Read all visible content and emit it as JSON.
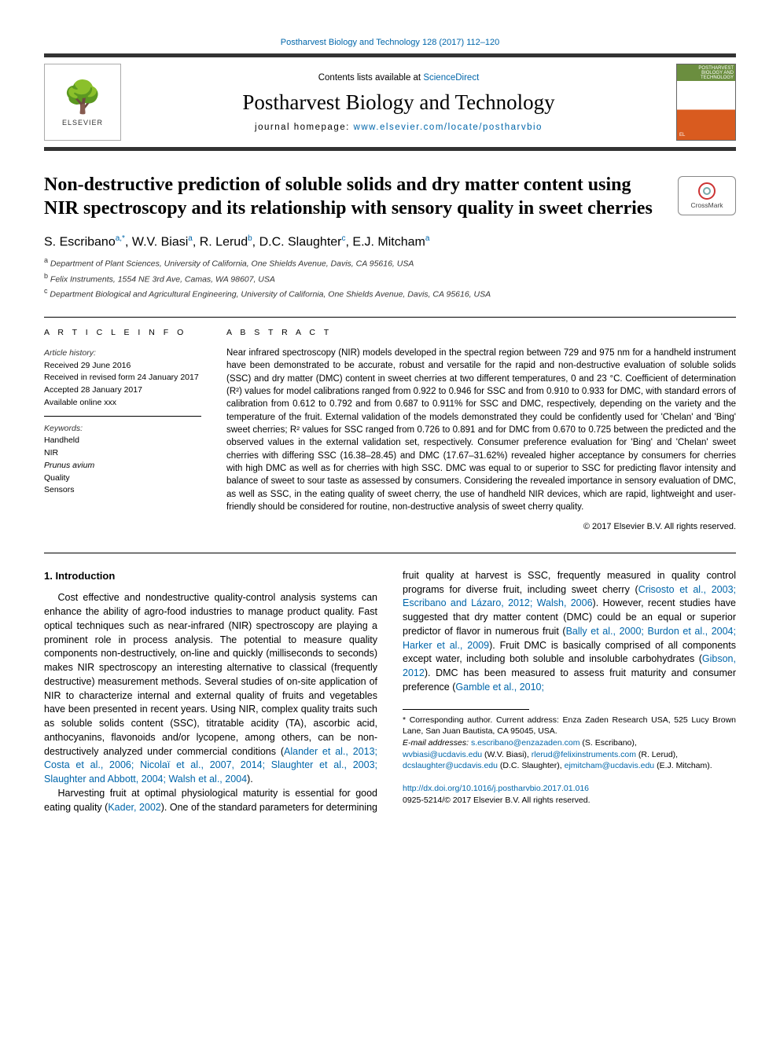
{
  "header": {
    "top_citation": "Postharvest Biology and Technology 128 (2017) 112–120",
    "contents_prefix": "Contents lists available at ",
    "contents_link": "ScienceDirect",
    "journal_title": "Postharvest Biology and Technology",
    "homepage_label": "journal homepage: ",
    "homepage_url": "www.elsevier.com/locate/postharvbio",
    "publisher_logo_name": "ELSEVIER",
    "cover_title": "POSTHARVEST BIOLOGY AND TECHNOLOGY"
  },
  "crossmark": "CrossMark",
  "article": {
    "title": "Non-destructive prediction of soluble solids and dry matter content using NIR spectroscopy and its relationship with sensory quality in sweet cherries",
    "authors_html": "S. Escribano<sup>a,*</sup>, W.V. Biasi<sup>a</sup>, R. Lerud<sup>b</sup>, D.C. Slaughter<sup>c</sup>, E.J. Mitcham<sup>a</sup>",
    "affiliations": [
      {
        "sup": "a",
        "text": "Department of Plant Sciences, University of California, One Shields Avenue, Davis, CA 95616, USA"
      },
      {
        "sup": "b",
        "text": "Felix Instruments, 1554 NE 3rd Ave, Camas, WA 98607, USA"
      },
      {
        "sup": "c",
        "text": "Department Biological and Agricultural Engineering, University of California, One Shields Avenue, Davis, CA 95616, USA"
      }
    ]
  },
  "info": {
    "heading": "A R T I C L E   I N F O",
    "history_label": "Article history:",
    "history": [
      "Received 29 June 2016",
      "Received in revised form 24 January 2017",
      "Accepted 28 January 2017",
      "Available online xxx"
    ],
    "keywords_label": "Keywords:",
    "keywords": [
      "Handheld",
      "NIR",
      "Prunus avium",
      "Quality",
      "Sensors"
    ]
  },
  "abstract": {
    "heading": "A B S T R A C T",
    "text": "Near infrared spectroscopy (NIR) models developed in the spectral region between 729 and 975 nm for a handheld instrument have been demonstrated to be accurate, robust and versatile for the rapid and non-destructive evaluation of soluble solids (SSC) and dry matter (DMC) content in sweet cherries at two different temperatures, 0 and 23 °C. Coefficient of determination (R²) values for model calibrations ranged from 0.922 to 0.946 for SSC and from 0.910 to 0.933 for DMC, with standard errors of calibration from 0.612 to 0.792 and from 0.687 to 0.911% for SSC and DMC, respectively, depending on the variety and the temperature of the fruit. External validation of the models demonstrated they could be confidently used for 'Chelan' and 'Bing' sweet cherries; R² values for SSC ranged from 0.726 to 0.891 and for DMC from 0.670 to 0.725 between the predicted and the observed values in the external validation set, respectively. Consumer preference evaluation for 'Bing' and 'Chelan' sweet cherries with differing SSC (16.38–28.45) and DMC (17.67–31.62%) revealed higher acceptance by consumers for cherries with high DMC as well as for cherries with high SSC. DMC was equal to or superior to SSC for predicting flavor intensity and balance of sweet to sour taste as assessed by consumers. Considering the revealed importance in sensory evaluation of DMC, as well as SSC, in the eating quality of sweet cherry, the use of handheld NIR devices, which are rapid, lightweight and user-friendly should be considered for routine, non-destructive analysis of sweet cherry quality.",
    "copyright": "© 2017 Elsevier B.V. All rights reserved."
  },
  "body": {
    "section_heading": "1. Introduction",
    "p1_pre": "Cost effective and nondestructive quality-control analysis systems can enhance the ability of agro-food industries to manage product quality. Fast optical techniques such as near-infrared (NIR) spectroscopy are playing a prominent role in process analysis. The potential to measure quality components non-destructively, on-line and quickly (milliseconds to seconds) makes NIR spectroscopy an interesting alternative to classical (frequently destructive) measurement methods. Several studies of on-site application of NIR to characterize internal and external quality of fruits and vegetables have been presented in recent years. Using NIR, complex quality traits such as soluble solids content (SSC), titratable acidity (TA), ascorbic acid, anthocyanins, flavonoids and/or lycopene, among others, can be non-destructively analyzed under commercial conditions (",
    "p1_cite1": "Alander et al., 2013; Costa et al., 2006; Nicolaï et al., 2007, 2014; Slaughter et al., 2003; Slaughter and Abbott, 2004; Walsh et al., 2004",
    "p1_post": ").",
    "p2_a": "Harvesting fruit at optimal physiological maturity is essential for good eating quality (",
    "p2_cite1": "Kader, 2002",
    "p2_b": "). One of the standard parameters for determining fruit quality at harvest is SSC, frequently measured in quality control programs for diverse fruit, including sweet cherry (",
    "p2_cite2": "Crisosto et al., 2003; Escribano and Lázaro, 2012; Walsh, 2006",
    "p2_c": "). However, recent studies have suggested that dry matter content (DMC) could be an equal or superior predictor of flavor in numerous fruit (",
    "p2_cite3": "Bally et al., 2000; Burdon et al., 2004; Harker et al., 2009",
    "p2_d": "). Fruit DMC is basically comprised of all components except water, including both soluble and insoluble carbohydrates (",
    "p2_cite4": "Gibson, 2012",
    "p2_e": "). DMC has been measured to assess fruit maturity and consumer preference (",
    "p2_cite5": "Gamble et al., 2010;"
  },
  "footnotes": {
    "corresponding": "* Corresponding author. Current address: Enza Zaden Research USA, 525 Lucy Brown Lane, San Juan Bautista, CA 95045, USA.",
    "emails_label": "E-mail addresses: ",
    "emails": [
      {
        "addr": "s.escribano@enzazaden.com",
        "name": "(S. Escribano),"
      },
      {
        "addr": "wvbiasi@ucdavis.edu",
        "name": "(W.V. Biasi),"
      },
      {
        "addr": "rlerud@felixinstruments.com",
        "name": "(R. Lerud),"
      },
      {
        "addr": "dcslaughter@ucdavis.edu",
        "name": "(D.C. Slaughter),"
      },
      {
        "addr": "ejmitcham@ucdavis.edu",
        "name": "(E.J. Mitcham)."
      }
    ]
  },
  "doi": {
    "url": "http://dx.doi.org/10.1016/j.postharvbio.2017.01.016",
    "issn_line": "0925-5214/© 2017 Elsevier B.V. All rights reserved."
  },
  "colors": {
    "link": "#0066aa",
    "text": "#000000",
    "rule": "#000000"
  }
}
